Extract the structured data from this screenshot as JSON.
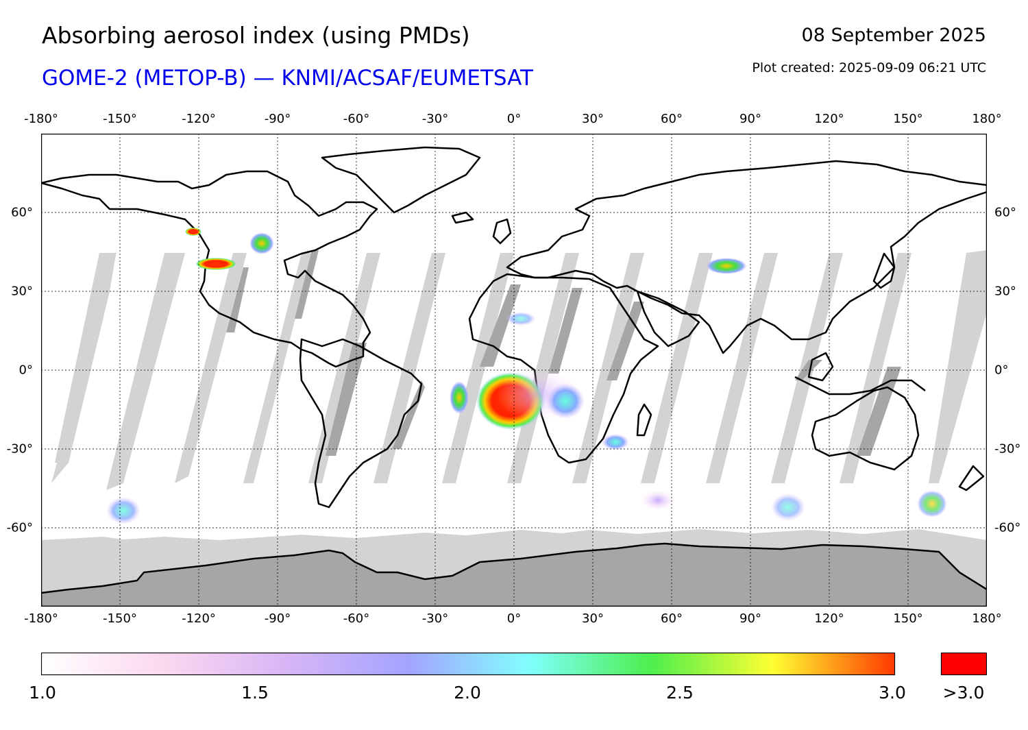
{
  "header": {
    "title": "Absorbing aerosol index (using PMDs)",
    "subtitle": "GOME-2 (METOP-B) — KNMI/ACSAF/EUMETSAT",
    "date": "08 September 2025",
    "created": "Plot created: 2025-09-09 06:21 UTC"
  },
  "map": {
    "projection": "equirectangular",
    "lon_range": [
      -180,
      180
    ],
    "lat_range": [
      -90,
      90
    ],
    "lon_ticks": [
      "-180°",
      "-150°",
      "-120°",
      "-90°",
      "-60°",
      "-30°",
      "0°",
      "30°",
      "60°",
      "90°",
      "120°",
      "150°",
      "180°"
    ],
    "lat_ticks": [
      "60°",
      "30°",
      "0°",
      "-30°",
      "-60°"
    ],
    "gridlines": "dotted",
    "no_data_color": "#d3d3d3",
    "missing_gap_color": "#a6a6a6",
    "coastline_color": "#000000",
    "aerosol_hotspots": [
      {
        "region": "Southern Africa (Angola)",
        "lon": 0,
        "lat": -12,
        "level": ">3.0"
      },
      {
        "region": "Western US",
        "lon": -118,
        "lat": 40,
        "level": ">3.0"
      },
      {
        "region": "Canada",
        "lon": -125,
        "lat": 52,
        "level": ">3.0"
      },
      {
        "region": "Central Canada",
        "lon": -97,
        "lat": 48,
        "level": "2.5"
      },
      {
        "region": "India / Nepal",
        "lon": 80,
        "lat": 39,
        "level": "2.7"
      },
      {
        "region": "Atlantic off West Africa",
        "lon": -22,
        "lat": -10,
        "level": "2.3"
      },
      {
        "region": "Southern Africa (Mozambique channel)",
        "lon": 40,
        "lat": -28,
        "level": "1.9"
      },
      {
        "region": "East Africa",
        "lon": 20,
        "lat": -10,
        "level": "2.0"
      }
    ]
  },
  "colorbar": {
    "ticks": [
      "1.0",
      "1.5",
      "2.0",
      "2.5",
      "3.0"
    ],
    "overflow_label": ">3.0",
    "overflow_color": "#ff0000",
    "stops": [
      "#ffffff",
      "#fbd8ef",
      "#d8b6f6",
      "#a3a3ff",
      "#80ffff",
      "#4cef4c",
      "#ffff33",
      "#ff3a00"
    ]
  }
}
